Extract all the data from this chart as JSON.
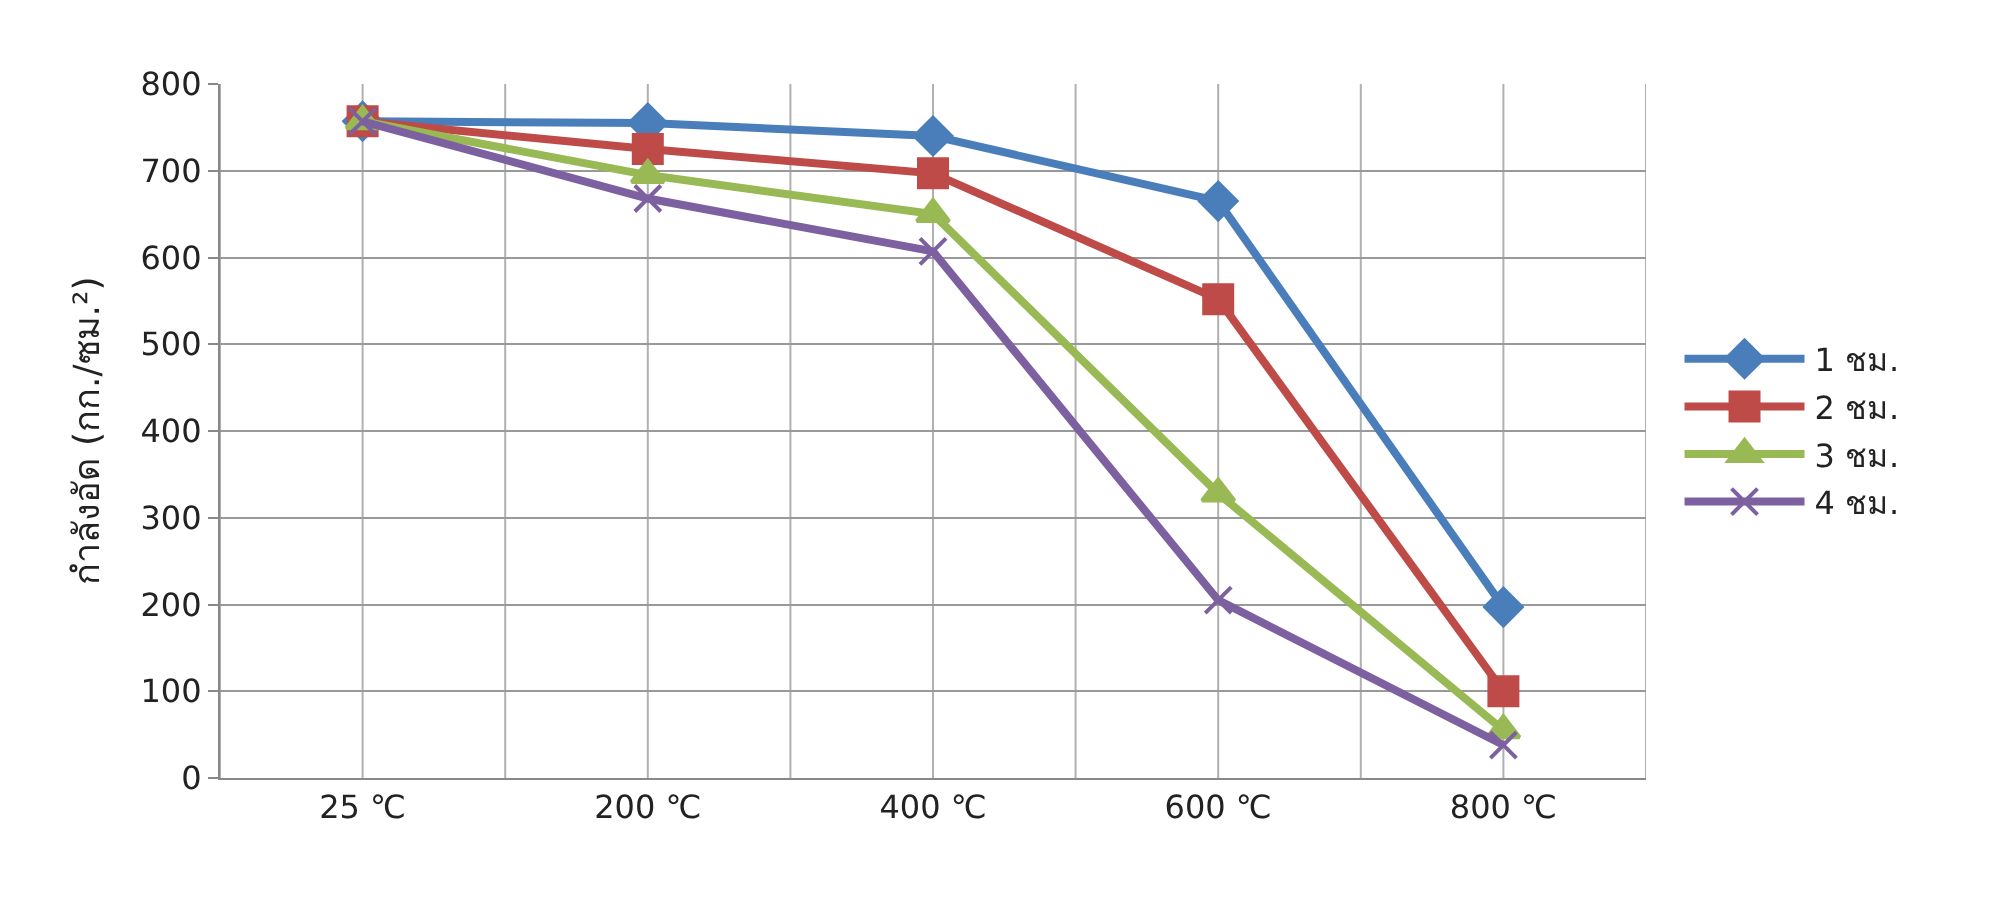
{
  "chart_data": {
    "type": "line",
    "ylabel": "กำลังอัด (กก./ซม.²)",
    "categories": [
      "25 ℃",
      "200 ℃",
      "400 ℃",
      "600 ℃",
      "800 ℃"
    ],
    "series": [
      {
        "name": "1 ชม.",
        "color": "#4a7ebb",
        "marker": "diamond",
        "values": [
          757,
          755,
          740,
          665,
          197
        ]
      },
      {
        "name": "2 ชม.",
        "color": "#be4b48",
        "marker": "square",
        "values": [
          757,
          725,
          697,
          552,
          100
        ]
      },
      {
        "name": "3 ชม.",
        "color": "#98b954",
        "marker": "triangle",
        "values": [
          757,
          695,
          650,
          328,
          55
        ]
      },
      {
        "name": "4 ชม.",
        "color": "#7d60a0",
        "marker": "cross",
        "values": [
          757,
          668,
          607,
          205,
          38
        ]
      }
    ],
    "ylim": [
      0,
      800
    ],
    "yticks": [
      0,
      100,
      200,
      300,
      400,
      500,
      600,
      700,
      800
    ],
    "grid": true,
    "legend": "right",
    "line_style": "solid"
  }
}
